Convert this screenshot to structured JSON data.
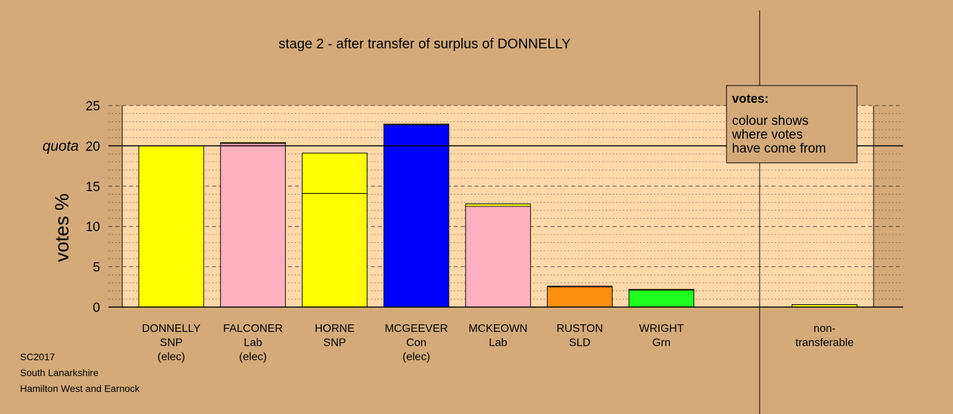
{
  "chart_data": {
    "type": "bar",
    "title": "stage 2 - after transfer of surplus of DONNELLY",
    "ylabel": "votes %",
    "ylim": [
      0,
      25
    ],
    "yticks": [
      0,
      5,
      10,
      15,
      20,
      25
    ],
    "quota": 20,
    "quota_label": "quota",
    "candidates": [
      {
        "name": "DONNELLY",
        "party": "SNP",
        "status": "(elec)",
        "segments": [
          {
            "value": 20.0,
            "color": "#ffff00"
          }
        ]
      },
      {
        "name": "FALCONER",
        "party": "Lab",
        "status": "(elec)",
        "segments": [
          {
            "value": 20.3,
            "color": "#ffb0c0"
          },
          {
            "value": 0.1,
            "color": "#ffff00"
          }
        ]
      },
      {
        "name": "HORNE",
        "party": "SNP",
        "status": "",
        "segments": [
          {
            "value": 14.1,
            "color": "#ffff00"
          },
          {
            "value": 5.0,
            "color": "#ffff00"
          }
        ]
      },
      {
        "name": "MCGEEVER",
        "party": "Con",
        "status": "(elec)",
        "segments": [
          {
            "value": 22.6,
            "color": "#0000ff"
          },
          {
            "value": 0.1,
            "color": "#ffff00"
          }
        ]
      },
      {
        "name": "MCKEOWN",
        "party": "Lab",
        "status": "",
        "segments": [
          {
            "value": 12.5,
            "color": "#ffb0c0"
          },
          {
            "value": 0.3,
            "color": "#ffff00"
          }
        ]
      },
      {
        "name": "RUSTON",
        "party": "SLD",
        "status": "",
        "segments": [
          {
            "value": 2.5,
            "color": "#ff9010"
          },
          {
            "value": 0.1,
            "color": "#ffff00"
          }
        ]
      },
      {
        "name": "WRIGHT",
        "party": "Grn",
        "status": "",
        "segments": [
          {
            "value": 2.1,
            "color": "#20ff20"
          },
          {
            "value": 0.1,
            "color": "#ffff00"
          }
        ]
      }
    ],
    "nontransferable": {
      "line1": "non-",
      "line2": "transferable",
      "value": 0.3,
      "color": "#ffff00"
    },
    "legend": {
      "title": "votes:",
      "lines": [
        "colour shows",
        "where votes",
        "have come from"
      ]
    },
    "colors": {
      "background": "#d4aa78",
      "plot_area": "#ffd8a8",
      "nontransferable_area": "#d4aa78"
    }
  },
  "footer": {
    "line1": "SC2017",
    "line2": "South Lanarkshire",
    "line3": "Hamilton West and Earnock"
  }
}
